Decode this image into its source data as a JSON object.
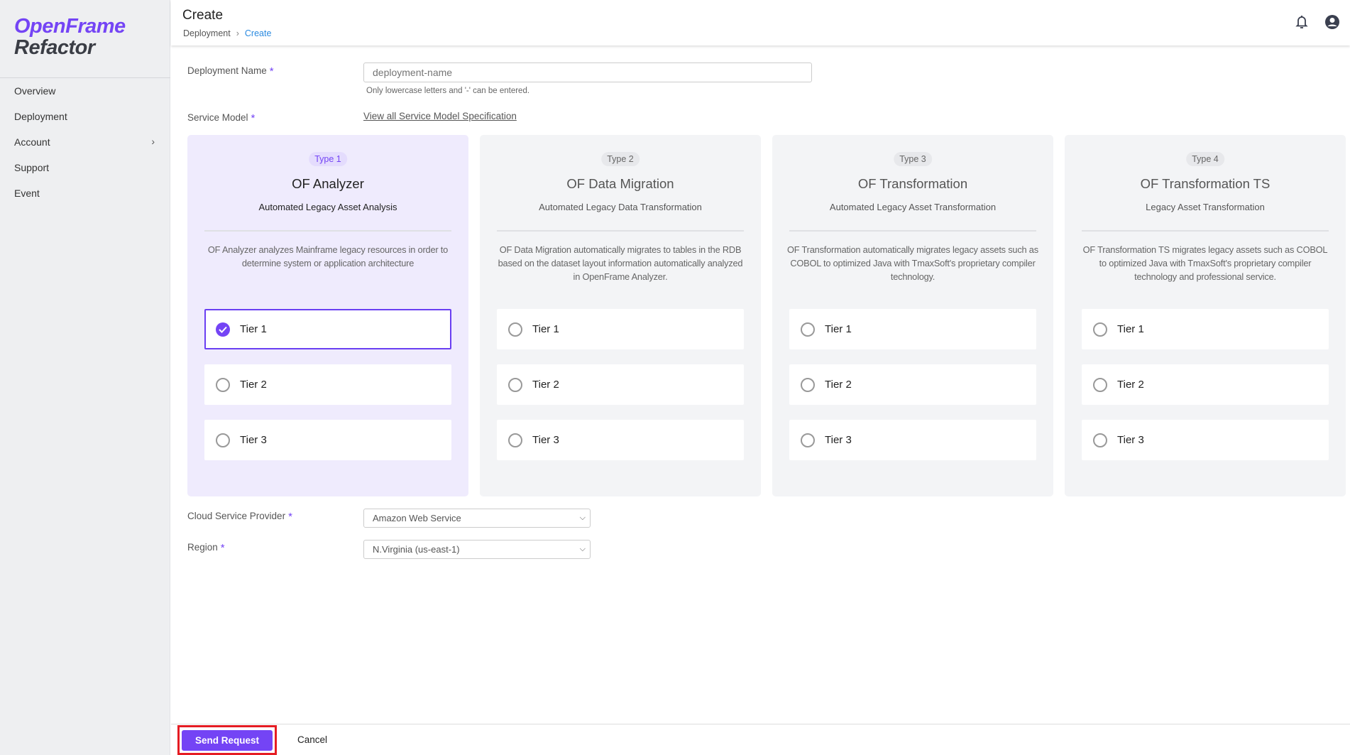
{
  "brand": {
    "line1": "OpenFrame",
    "line2": "Refactor",
    "accent": "#7444f5"
  },
  "sidebar": {
    "items": [
      {
        "label": "Overview"
      },
      {
        "label": "Deployment"
      },
      {
        "label": "Account",
        "has_submenu": true
      },
      {
        "label": "Support"
      },
      {
        "label": "Event"
      }
    ]
  },
  "header": {
    "title": "Create",
    "breadcrumb": [
      "Deployment",
      "Create"
    ]
  },
  "form": {
    "deployment_name": {
      "label": "Deployment Name",
      "required": "*",
      "placeholder": "deployment-name",
      "hint": "Only lowercase letters and '-' can be entered."
    },
    "service_model": {
      "label": "Service Model",
      "required": "*",
      "link": "View all Service Model Specification"
    },
    "cards": [
      {
        "badge": "Type 1",
        "title": "OF Analyzer",
        "subtitle": "Automated Legacy Asset Analysis",
        "description": "OF Analyzer analyzes Mainframe legacy resources in order to determine system or application architecture",
        "tiers": [
          "Tier 1",
          "Tier 2",
          "Tier 3"
        ],
        "selected_tier": "Tier 1",
        "selected": true
      },
      {
        "badge": "Type 2",
        "title": "OF Data Migration",
        "subtitle": "Automated Legacy Data Transformation",
        "description": "OF Data Migration automatically migrates to tables in the RDB based on the dataset layout information automatically analyzed in OpenFrame Analyzer.",
        "tiers": [
          "Tier 1",
          "Tier 2",
          "Tier 3"
        ]
      },
      {
        "badge": "Type 3",
        "title": "OF Transformation",
        "subtitle": "Automated Legacy Asset Transformation",
        "description": "OF Transformation automatically migrates legacy assets such as COBOL to optimized Java with TmaxSoft's proprietary compiler technology.",
        "tiers": [
          "Tier 1",
          "Tier 2",
          "Tier 3"
        ]
      },
      {
        "badge": "Type 4",
        "title": "OF Transformation TS",
        "subtitle": "Legacy Asset Transformation",
        "description": "OF Transformation TS migrates legacy assets such as COBOL to optimized Java with TmaxSoft's proprietary compiler technology and professional service.",
        "tiers": [
          "Tier 1",
          "Tier 2",
          "Tier 3"
        ]
      }
    ],
    "cloud_provider": {
      "label": "Cloud Service Provider",
      "required": "*",
      "value": "Amazon Web Service"
    },
    "region": {
      "label": "Region",
      "required": "*",
      "value": "N.Virginia (us-east-1)"
    }
  },
  "footer": {
    "send": "Send Request",
    "cancel": "Cancel"
  }
}
